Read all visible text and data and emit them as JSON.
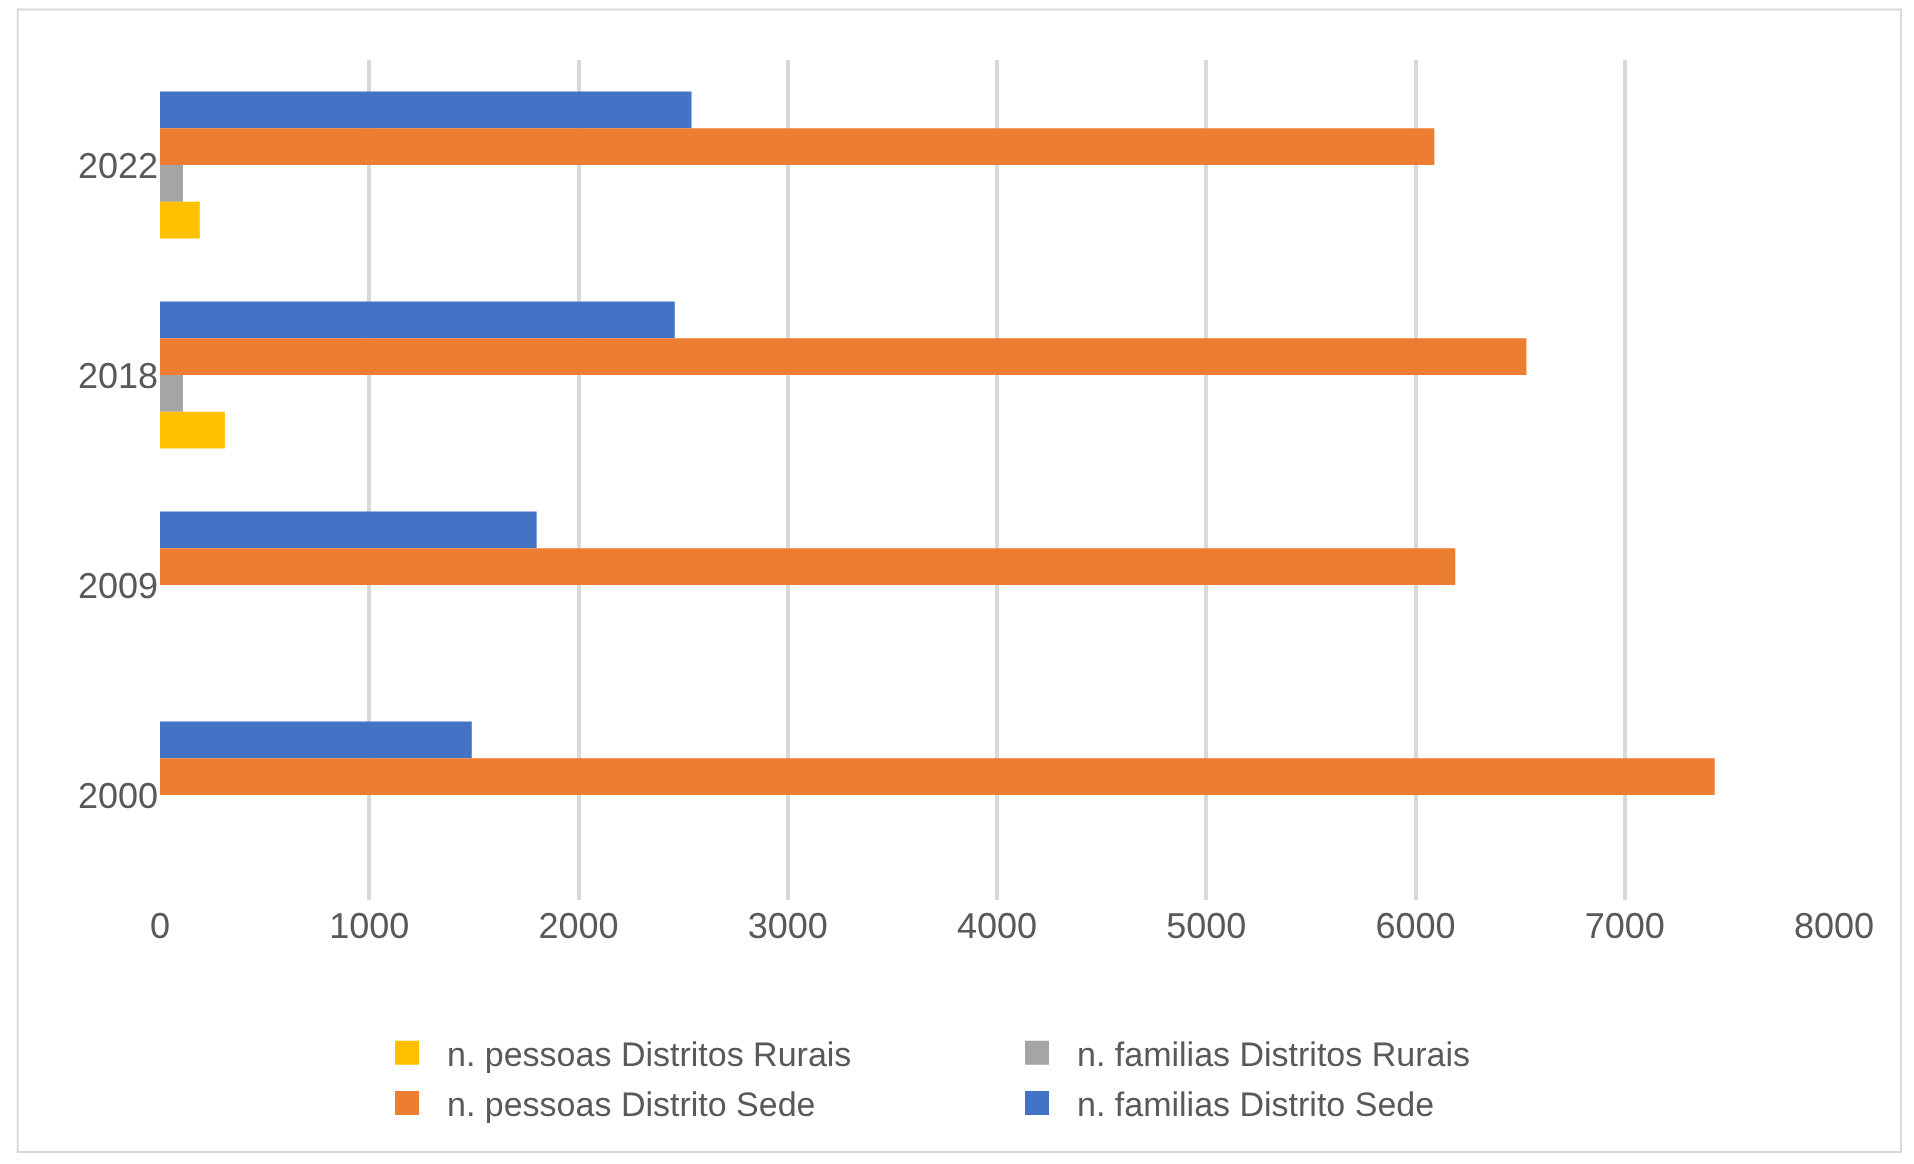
{
  "chart_data": {
    "type": "bar",
    "orientation": "horizontal",
    "categories": [
      "2022",
      "2018",
      "2009",
      "2000"
    ],
    "series": [
      {
        "name": "n. familias Distrito Sede",
        "color": "#4472c4",
        "values": [
          2540,
          2460,
          1800,
          1490
        ]
      },
      {
        "name": "n. pessoas Distrito Sede",
        "color": "#ed7d31",
        "values": [
          6090,
          6530,
          6190,
          7430
        ]
      },
      {
        "name": "n. familias Distritos Rurais",
        "color": "#a5a5a5",
        "values": [
          110,
          110,
          null,
          null
        ]
      },
      {
        "name": "n. pessoas Distritos Rurais",
        "color": "#ffc000",
        "values": [
          190,
          310,
          null,
          null
        ]
      }
    ],
    "xlim": [
      0,
      8000
    ],
    "xticks": [
      0,
      1000,
      2000,
      3000,
      4000,
      5000,
      6000,
      7000,
      8000
    ],
    "grid": "x",
    "legend": "bottom"
  }
}
